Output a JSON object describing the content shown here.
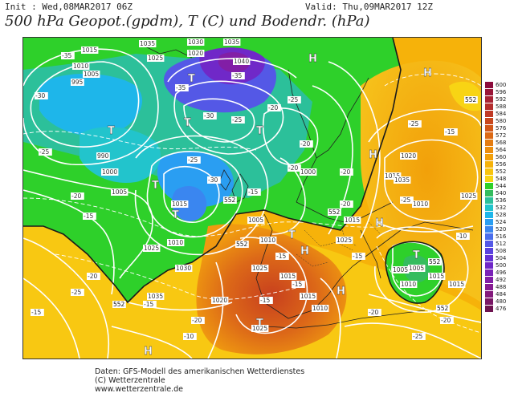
{
  "header": {
    "init": "Init : Wed,08MAR2017 06Z",
    "valid": "Valid: Thu,09MAR2017 12Z",
    "title": "500 hPa Geopot.(gpdm), T (C) und Bodendr. (hPa)"
  },
  "credits": {
    "line1": "Daten: GFS-Modell des amerikanischen Wetterdienstes",
    "line2": "(C) Wetterzentrale",
    "line3": "www.wetterzentrale.de"
  },
  "legend": {
    "levels": [
      {
        "value": "600",
        "color": "#8c0c3c"
      },
      {
        "value": "596",
        "color": "#9a1638"
      },
      {
        "value": "592",
        "color": "#a82234"
      },
      {
        "value": "588",
        "color": "#b42e2e"
      },
      {
        "value": "584",
        "color": "#bf3a26"
      },
      {
        "value": "580",
        "color": "#c8481e"
      },
      {
        "value": "576",
        "color": "#d2581a"
      },
      {
        "value": "572",
        "color": "#dc6a16"
      },
      {
        "value": "568",
        "color": "#e47c12"
      },
      {
        "value": "564",
        "color": "#ec8e0e"
      },
      {
        "value": "560",
        "color": "#f2a00a"
      },
      {
        "value": "556",
        "color": "#f6b20a"
      },
      {
        "value": "552",
        "color": "#f8c40e"
      },
      {
        "value": "548",
        "color": "#f8d414"
      },
      {
        "value": "544",
        "color": "#2ed02a"
      },
      {
        "value": "540",
        "color": "#34bc5e"
      },
      {
        "value": "536",
        "color": "#2cc09a"
      },
      {
        "value": "532",
        "color": "#22c4cc"
      },
      {
        "value": "528",
        "color": "#1eb6ea"
      },
      {
        "value": "524",
        "color": "#2a9ef2"
      },
      {
        "value": "520",
        "color": "#3a86f0"
      },
      {
        "value": "516",
        "color": "#4a6eec"
      },
      {
        "value": "512",
        "color": "#5458e6"
      },
      {
        "value": "508",
        "color": "#5a42de"
      },
      {
        "value": "504",
        "color": "#6432d4"
      },
      {
        "value": "500",
        "color": "#7028c8"
      },
      {
        "value": "496",
        "color": "#7a22b8"
      },
      {
        "value": "492",
        "color": "#821ea6"
      },
      {
        "value": "488",
        "color": "#861c92"
      },
      {
        "value": "484",
        "color": "#841a7c"
      },
      {
        "value": "480",
        "color": "#7a1866"
      },
      {
        "value": "476",
        "color": "#6e1450"
      }
    ]
  },
  "map": {
    "pressure_systems": [
      {
        "label": "H"
      },
      {
        "label": "H"
      },
      {
        "label": "H"
      },
      {
        "label": "H"
      },
      {
        "label": "H"
      },
      {
        "label": "H"
      },
      {
        "label": "H"
      },
      {
        "label": "T"
      },
      {
        "label": "T"
      },
      {
        "label": "T"
      },
      {
        "label": "T"
      },
      {
        "label": "T"
      },
      {
        "label": "T"
      },
      {
        "label": "T"
      },
      {
        "label": "T"
      },
      {
        "label": "T"
      }
    ],
    "isobar_labels": [
      "1015",
      "1010",
      "1005",
      "995",
      "1035",
      "1025",
      "1030",
      "1020",
      "1035",
      "1040",
      "990",
      "1000",
      "1005",
      "1015",
      "1010",
      "1025",
      "1030",
      "1035",
      "1005",
      "1010",
      "1025",
      "1015",
      "1020",
      "1015",
      "1025",
      "1010",
      "1005",
      "1010",
      "1015",
      "1015",
      "1015",
      "1025",
      "1005",
      "1010",
      "1025",
      "1020",
      "1015",
      "1000",
      "1035"
    ],
    "temperature_labels": [
      "-35",
      "-30",
      "-25",
      "-20",
      "-15",
      "-35",
      "-30",
      "-25",
      "-20",
      "-25",
      "-20",
      "-25",
      "-15",
      "-30",
      "-35",
      "-20",
      "-25",
      "-15",
      "-15",
      "-25",
      "-15",
      "-10",
      "-15",
      "-20",
      "-25",
      "-15",
      "-20",
      "-10",
      "-15",
      "-20",
      "-25",
      "-20",
      "-15",
      "-20",
      "-20"
    ],
    "gpdm_labels": [
      "552",
      "552",
      "552",
      "552",
      "552",
      "552",
      "552"
    ]
  }
}
